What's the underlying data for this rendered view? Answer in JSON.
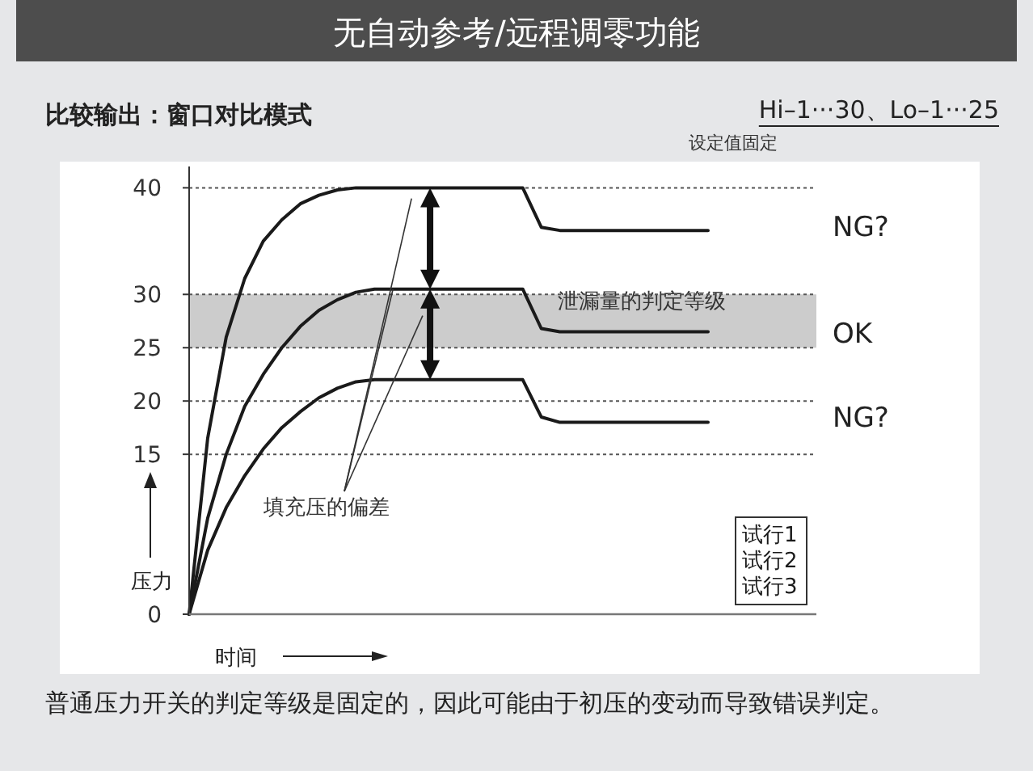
{
  "chart_data": {
    "type": "line",
    "title": "无自动参考/远程调零功能",
    "subtitle": "比较输出：窗口对比模式",
    "xlabel": "时间",
    "ylabel": "压力",
    "categories": [
      null,
      null,
      null,
      null,
      null,
      null,
      null,
      null,
      null,
      null,
      null,
      null,
      null,
      null,
      null,
      null,
      null,
      null,
      null,
      null,
      null,
      null,
      null,
      null,
      null,
      null,
      null,
      null,
      null
    ],
    "ylim": [
      0,
      42
    ],
    "yticks": [
      0,
      15,
      20,
      25,
      30,
      40
    ],
    "tick_labels": "y",
    "grid": false,
    "legend": "bottom right",
    "marker": "none",
    "line_style": "solid",
    "ref_lines": [
      {
        "axis": "y",
        "value": 15,
        "color": "#555555",
        "line_style": "dotted"
      },
      {
        "axis": "y",
        "value": 20,
        "color": "#555555",
        "line_style": "dotted"
      },
      {
        "axis": "y",
        "value": 25,
        "color": "#555555",
        "line_style": "dotted"
      },
      {
        "axis": "y",
        "value": 30,
        "color": "#555555",
        "line_style": "dotted"
      },
      {
        "axis": "y",
        "value": 40,
        "color": "#555555",
        "line_style": "dotted"
      }
    ],
    "bands": [
      {
        "axis": "y",
        "from": 25,
        "to": 30,
        "label": "泄漏量的判定等级",
        "color": "#cccccc"
      }
    ],
    "annotations": [
      "Hi–1···30、Lo–1···25",
      "设定值固定",
      "填充压的偏差",
      "NG?",
      "OK",
      "NG?",
      "普通压力开关的判定等级是固定的，因此可能由于初压的变动而导致错误判定。"
    ],
    "series": [
      {
        "name": "试行1",
        "color": "#1a1a1a",
        "values": [
          0,
          16.5,
          26,
          31.5,
          35,
          37,
          38.5,
          39.3,
          39.8,
          40,
          40,
          40,
          40,
          40,
          40,
          40,
          40,
          40,
          40,
          36.3,
          36,
          36,
          36,
          36,
          36,
          36,
          36,
          36,
          36
        ]
      },
      {
        "name": "试行2",
        "color": "#1a1a1a",
        "values": [
          0,
          9,
          15,
          19.5,
          22.5,
          25,
          27,
          28.5,
          29.5,
          30.2,
          30.5,
          30.5,
          30.5,
          30.5,
          30.5,
          30.5,
          30.5,
          30.5,
          30.5,
          26.8,
          26.5,
          26.5,
          26.5,
          26.5,
          26.5,
          26.5,
          26.5,
          26.5,
          26.5
        ]
      },
      {
        "name": "试行3",
        "color": "#1a1a1a",
        "values": [
          0,
          6,
          10,
          13,
          15.5,
          17.5,
          19,
          20.3,
          21.2,
          21.8,
          22,
          22,
          22,
          22,
          22,
          22,
          22,
          22,
          22,
          18.5,
          18,
          18,
          18,
          18,
          18,
          18,
          18,
          18,
          18
        ]
      }
    ]
  }
}
